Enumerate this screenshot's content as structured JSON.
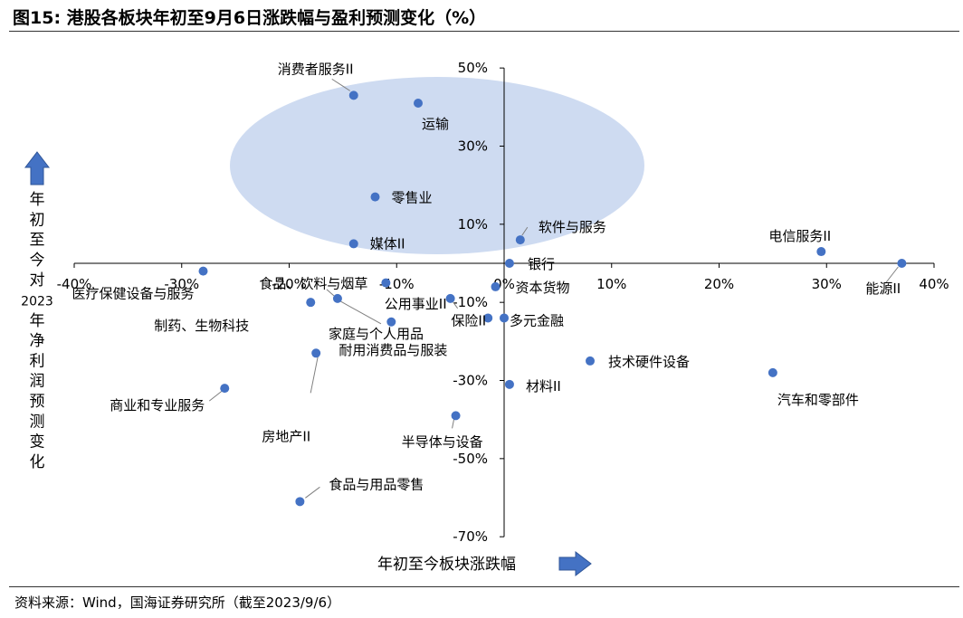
{
  "figure_title": "图15:  港股各板块年初至9月6日涨跌幅与盈利预测变化（%）",
  "source_note": "资料来源：Wind，国海证券研究所（截至2023/9/6）",
  "colors": {
    "point": "#4472C4",
    "ellipse": "#C9D7EF",
    "leader": "#7F7F7F",
    "arrow_fill": "#4472C4",
    "arrow_stroke": "#2F5597"
  },
  "chart_data": {
    "type": "scatter",
    "title": "港股各板块年初至9月6日涨跌幅与盈利预测变化（%）",
    "xlabel": "年初至今板块涨跌幅",
    "ylabel": "年初至今对2023年净利润预测变化",
    "xlim": [
      -40,
      40
    ],
    "ylim": [
      -70,
      50
    ],
    "xticks": [
      -40,
      -30,
      -20,
      -10,
      0,
      10,
      20,
      30,
      40
    ],
    "yticks": [
      -70,
      -50,
      -30,
      -10,
      10,
      30,
      50
    ],
    "xtick_labels": [
      "-40%",
      "-30%",
      "-20%",
      "-10%",
      "0%",
      "10%",
      "20%",
      "30%",
      "40%"
    ],
    "ytick_labels": [
      "-70%",
      "-50%",
      "-30%",
      "-10%",
      "10%",
      "30%",
      "50%"
    ],
    "grid": false,
    "highlight": "ellipse around top-left cluster",
    "points": [
      {
        "label": "消费者服务II",
        "x": -14,
        "y": 43
      },
      {
        "label": "运输",
        "x": -8,
        "y": 41
      },
      {
        "label": "零售业",
        "x": -12,
        "y": 17
      },
      {
        "label": "媒体II",
        "x": -14,
        "y": 5
      },
      {
        "label": "软件与服务",
        "x": 1.5,
        "y": 6
      },
      {
        "label": "电信服务II",
        "x": 29.5,
        "y": 3
      },
      {
        "label": "能源II",
        "x": 37,
        "y": 0
      },
      {
        "label": "银行",
        "x": 0.5,
        "y": 0
      },
      {
        "label": "资本货物",
        "x": -0.8,
        "y": -6
      },
      {
        "label": "医疗保健设备与服务",
        "x": -28,
        "y": -2
      },
      {
        "label": "食品、饮料与烟草",
        "x": -11,
        "y": -5
      },
      {
        "label": "公用事业II",
        "x": -5,
        "y": -9
      },
      {
        "label": "制药、生物科技",
        "x": -18,
        "y": -10
      },
      {
        "label": "家庭与个人用品",
        "x": -15.5,
        "y": -9
      },
      {
        "label": "保险II",
        "x": -1.5,
        "y": -14
      },
      {
        "label": "多元金融",
        "x": 0,
        "y": -14
      },
      {
        "label": "耐用消费品与服装",
        "x": -10.5,
        "y": -15
      },
      {
        "label": "房地产II",
        "x": -17.5,
        "y": -23
      },
      {
        "label": "技术硬件设备",
        "x": 8,
        "y": -25
      },
      {
        "label": "汽车和零部件",
        "x": 25,
        "y": -28
      },
      {
        "label": "材料II",
        "x": 0.5,
        "y": -31
      },
      {
        "label": "商业和专业服务",
        "x": -26,
        "y": -32
      },
      {
        "label": "半导体与设备",
        "x": -4.5,
        "y": -39
      },
      {
        "label": "食品与用品零售",
        "x": -19,
        "y": -61
      }
    ]
  }
}
